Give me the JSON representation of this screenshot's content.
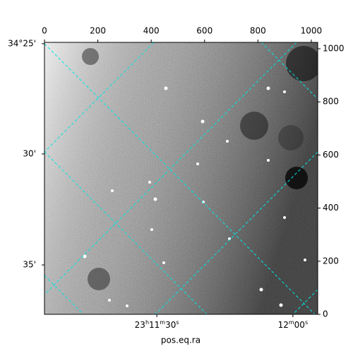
{
  "chart_data": {
    "type": "image",
    "xlabel": "pos.eq.ra",
    "xlim": [
      0,
      1024
    ],
    "ylim": [
      0,
      1024
    ],
    "xticks": [
      0,
      200,
      400,
      600,
      800,
      1000
    ],
    "yticks": [
      0,
      200,
      400,
      600,
      800,
      1000
    ],
    "ra_ticks": [
      {
        "value": 421,
        "label": "23h11m30s"
      },
      {
        "value": 931,
        "label": "12m00s"
      }
    ],
    "dec_ticks": [
      {
        "value": 1019,
        "label": "34°25'"
      },
      {
        "value": 604,
        "label": "30'"
      },
      {
        "value": 186,
        "label": "35'"
      }
    ],
    "grid_color": "#00e5e5"
  }
}
